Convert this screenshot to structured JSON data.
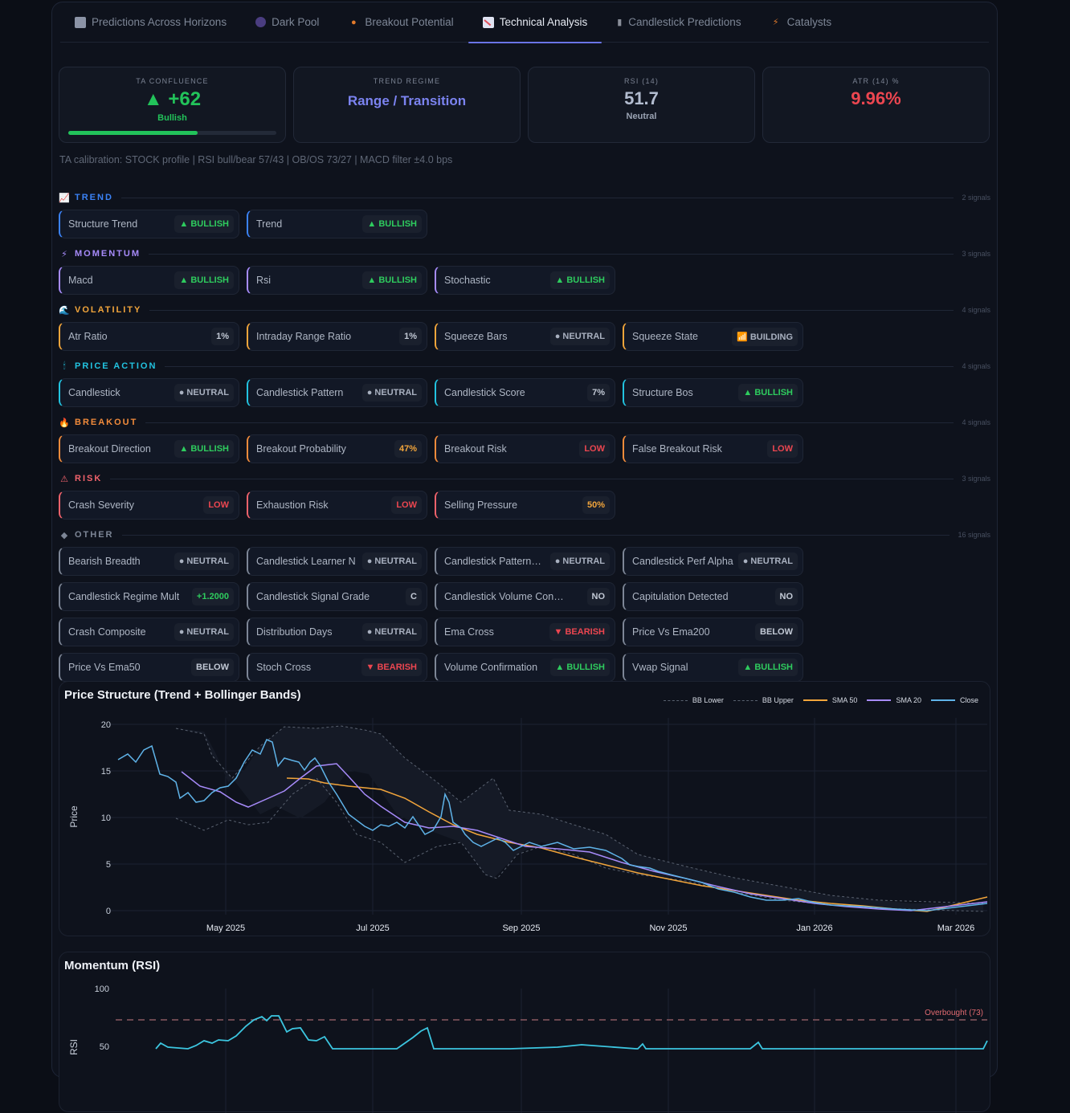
{
  "tabs": [
    {
      "label": "Predictions Across Horizons",
      "icon": "chart-icon",
      "active": false
    },
    {
      "label": "Dark Pool",
      "icon": "dark-pool-icon",
      "active": false
    },
    {
      "label": "Breakout Potential",
      "icon": "flame-icon",
      "active": false
    },
    {
      "label": "Technical Analysis",
      "icon": "chart-down-icon",
      "active": true
    },
    {
      "label": "Candlestick Predictions",
      "icon": "candle-icon",
      "active": false
    },
    {
      "label": "Catalysts",
      "icon": "bolt-icon",
      "active": false
    }
  ],
  "kpis": {
    "confluence": {
      "label": "TA CONFLUENCE",
      "value": "▲ +62",
      "sub": "Bullish",
      "bar_pct": 62,
      "color": "#22c35a"
    },
    "trend": {
      "label": "TREND REGIME",
      "value": "Range / Transition",
      "color": "#7b83f0"
    },
    "rsi": {
      "label": "RSI (14)",
      "value": "51.7",
      "sub": "Neutral",
      "color": "#b3bdd0"
    },
    "atr": {
      "label": "ATR (14) %",
      "value": "9.96%",
      "color": "#ec4650"
    }
  },
  "calibration": "TA calibration: STOCK profile | RSI bull/bear 57/43 | OB/OS 73/27 | MACD filter ±4.0 bps",
  "sections": [
    {
      "title": "TREND",
      "icon": "chart-icon",
      "color": "#3b82f6",
      "count": "2 signals",
      "cards": [
        {
          "label": "Structure Trend",
          "badge": "▲ BULLISH",
          "kind": "bull"
        },
        {
          "label": "Trend",
          "badge": "▲ BULLISH",
          "kind": "bull"
        }
      ]
    },
    {
      "title": "MOMENTUM",
      "icon": "bolt-icon",
      "color": "#a78bfa",
      "count": "3 signals",
      "cards": [
        {
          "label": "Macd",
          "badge": "▲ BULLISH",
          "kind": "bull"
        },
        {
          "label": "Rsi",
          "badge": "▲ BULLISH",
          "kind": "bull"
        },
        {
          "label": "Stochastic",
          "badge": "▲ BULLISH",
          "kind": "bull"
        }
      ]
    },
    {
      "title": "VOLATILITY",
      "icon": "wave-icon",
      "color": "#f2a53b",
      "count": "4 signals",
      "cards": [
        {
          "label": "Atr Ratio",
          "badge": "1%",
          "kind": "plain"
        },
        {
          "label": "Intraday Range Ratio",
          "badge": "1%",
          "kind": "plain"
        },
        {
          "label": "Squeeze Bars",
          "badge": "● NEUTRAL",
          "kind": "neu"
        },
        {
          "label": "Squeeze State",
          "badge": "📶 BUILDING",
          "kind": "neu"
        }
      ]
    },
    {
      "title": "PRICE ACTION",
      "icon": "candle-icon",
      "color": "#22c3e0",
      "count": "4 signals",
      "cards": [
        {
          "label": "Candlestick",
          "badge": "● NEUTRAL",
          "kind": "neu"
        },
        {
          "label": "Candlestick Pattern",
          "badge": "● NEUTRAL",
          "kind": "neu"
        },
        {
          "label": "Candlestick Score",
          "badge": "7%",
          "kind": "plain"
        },
        {
          "label": "Structure Bos",
          "badge": "▲ BULLISH",
          "kind": "bull"
        }
      ]
    },
    {
      "title": "BREAKOUT",
      "icon": "flame-icon",
      "color": "#f28b3b",
      "count": "4 signals",
      "cards": [
        {
          "label": "Breakout Direction",
          "badge": "▲ BULLISH",
          "kind": "bull"
        },
        {
          "label": "Breakout Probability",
          "badge": "47%",
          "kind": "amber"
        },
        {
          "label": "Breakout Risk",
          "badge": "LOW",
          "kind": "low"
        },
        {
          "label": "False Breakout Risk",
          "badge": "LOW",
          "kind": "low"
        }
      ]
    },
    {
      "title": "RISK",
      "icon": "warning-icon",
      "color": "#f0626b",
      "count": "3 signals",
      "cards": [
        {
          "label": "Crash Severity",
          "badge": "LOW",
          "kind": "low"
        },
        {
          "label": "Exhaustion Risk",
          "badge": "LOW",
          "kind": "low"
        },
        {
          "label": "Selling Pressure",
          "badge": "50%",
          "kind": "amber"
        }
      ]
    },
    {
      "title": "OTHER",
      "icon": "diamond-icon",
      "color": "#7d8696",
      "count": "16 signals",
      "cards": [
        {
          "label": "Bearish Breadth",
          "badge": "● NEUTRAL",
          "kind": "neu"
        },
        {
          "label": "Candlestick Learner N",
          "badge": "● NEUTRAL",
          "kind": "neu"
        },
        {
          "label": "Candlestick Pattern…",
          "badge": "● NEUTRAL",
          "kind": "neu"
        },
        {
          "label": "Candlestick Perf Alpha",
          "badge": "● NEUTRAL",
          "kind": "neu"
        },
        {
          "label": "Candlestick Regime Mult",
          "badge": "+1.2000",
          "kind": "bull"
        },
        {
          "label": "Candlestick Signal Grade",
          "badge": "C",
          "kind": "plain"
        },
        {
          "label": "Candlestick Volume Confirm…",
          "badge": "NO",
          "kind": "plain"
        },
        {
          "label": "Capitulation Detected",
          "badge": "NO",
          "kind": "plain"
        },
        {
          "label": "Crash Composite",
          "badge": "● NEUTRAL",
          "kind": "neu"
        },
        {
          "label": "Distribution Days",
          "badge": "● NEUTRAL",
          "kind": "neu"
        },
        {
          "label": "Ema Cross",
          "badge": "▼ BEARISH",
          "kind": "bear"
        },
        {
          "label": "Price Vs Ema200",
          "badge": "BELOW",
          "kind": "plain"
        },
        {
          "label": "Price Vs Ema50",
          "badge": "BELOW",
          "kind": "plain"
        },
        {
          "label": "Stoch Cross",
          "badge": "▼ BEARISH",
          "kind": "bear"
        },
        {
          "label": "Volume Confirmation",
          "badge": "▲ BULLISH",
          "kind": "bull"
        },
        {
          "label": "Vwap Signal",
          "badge": "▲ BULLISH",
          "kind": "bull"
        }
      ]
    }
  ],
  "price_chart": {
    "title": "Price Structure (Trend + Bollinger Bands)",
    "ylabel": "Price",
    "yticks": [
      "0",
      "5",
      "10",
      "15",
      "20"
    ],
    "xticks": [
      "May 2025",
      "Jul 2025",
      "Sep 2025",
      "Nov 2025",
      "Jan 2026",
      "Mar 2026"
    ],
    "legend": [
      {
        "label": "BB Lower",
        "style": "dash",
        "color": "#5a6270"
      },
      {
        "label": "BB Upper",
        "style": "dash",
        "color": "#5a6270"
      },
      {
        "label": "SMA 50",
        "style": "line",
        "color": "#f2a53b"
      },
      {
        "label": "SMA 20",
        "style": "line",
        "color": "#a78bfa"
      },
      {
        "label": "Close",
        "style": "line",
        "color": "#5fb3e8"
      }
    ]
  },
  "rsi_chart": {
    "title": "Momentum (RSI)",
    "ylabel": "RSI",
    "yticks": [
      "50",
      "100"
    ],
    "overbought_label": "Overbought (73)"
  },
  "chart_data": [
    {
      "type": "line",
      "title": "Price Structure (Trend + Bollinger Bands)",
      "xlabel": "",
      "ylabel": "Price",
      "ylim": [
        0,
        20
      ],
      "x": [
        "2025-03",
        "2025-04",
        "2025-05",
        "2025-06",
        "2025-07",
        "2025-08",
        "2025-09",
        "2025-10",
        "2025-11",
        "2025-12",
        "2026-01",
        "2026-02",
        "2026-03"
      ],
      "series": [
        {
          "name": "Close",
          "values": [
            16.5,
            11.5,
            12.5,
            16.0,
            8.5,
            7.0,
            6.5,
            4.0,
            3.0,
            2.5,
            1.7,
            1.5,
            1.1
          ]
        },
        {
          "name": "SMA 20",
          "values": [
            null,
            14.5,
            12.0,
            15.5,
            10.5,
            9.0,
            6.7,
            4.8,
            3.5,
            2.7,
            2.0,
            1.7,
            1.2
          ]
        },
        {
          "name": "SMA 50",
          "values": [
            null,
            null,
            null,
            14.5,
            13.5,
            11.0,
            7.8,
            6.2,
            4.8,
            3.7,
            2.8,
            2.0,
            1.4
          ]
        },
        {
          "name": "BB Upper",
          "values": [
            null,
            19.5,
            16.5,
            19.5,
            15.0,
            12.0,
            7.3,
            6.2,
            4.5,
            3.3,
            2.4,
            1.8,
            1.3
          ]
        },
        {
          "name": "BB Lower",
          "values": [
            null,
            10.5,
            10.0,
            12.0,
            7.0,
            4.0,
            5.8,
            3.3,
            2.5,
            2.0,
            1.5,
            1.2,
            1.0
          ]
        }
      ],
      "legend_position": "top-right",
      "grid": true
    },
    {
      "type": "line",
      "title": "Momentum (RSI)",
      "ylabel": "RSI",
      "ylim": [
        0,
        100
      ],
      "series": [
        {
          "name": "RSI",
          "values": [
            50,
            48,
            50,
            60,
            75,
            63,
            50,
            45,
            48,
            68,
            44,
            49,
            45,
            47,
            51.7
          ]
        }
      ],
      "annotations": [
        {
          "type": "hline",
          "y": 73,
          "label": "Overbought (73)"
        }
      ]
    }
  ]
}
